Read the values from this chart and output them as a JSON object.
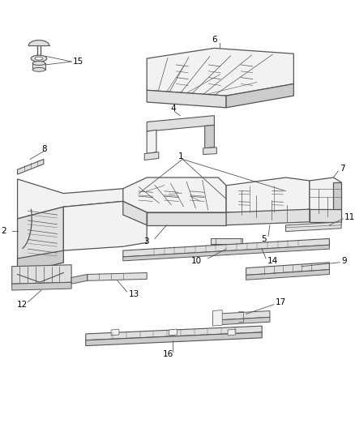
{
  "bg_color": "#ffffff",
  "line_color": "#555555",
  "fill_light": "#f2f2f2",
  "fill_mid": "#e0e0e0",
  "fill_dark": "#cccccc",
  "fig_width": 4.38,
  "fig_height": 5.33,
  "dpi": 100
}
